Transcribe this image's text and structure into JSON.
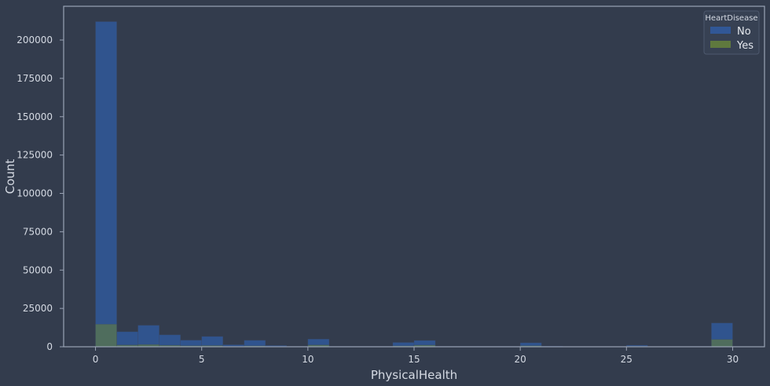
{
  "chart_data": {
    "type": "bar",
    "xlabel": "PhysicalHealth",
    "ylabel": "Count",
    "xlim": [
      -1.5,
      31.5
    ],
    "ylim": [
      0,
      222000
    ],
    "xticks": [
      0,
      5,
      10,
      15,
      20,
      25,
      30
    ],
    "yticks": [
      0,
      25000,
      50000,
      75000,
      100000,
      125000,
      150000,
      175000,
      200000
    ],
    "bin_edges": [
      0,
      1,
      2,
      3,
      4,
      5,
      6,
      7,
      8,
      9,
      10,
      11,
      12,
      13,
      14,
      15,
      16,
      17,
      18,
      19,
      20,
      21,
      22,
      23,
      24,
      25,
      26,
      27,
      28,
      29,
      30
    ],
    "legend": {
      "title": "HeartDisease",
      "placement": "top-right"
    },
    "series": [
      {
        "name": "No",
        "color": "#30589a",
        "values": [
          212000,
          9800,
          14000,
          7800,
          4300,
          6700,
          1300,
          4200,
          800,
          300,
          5000,
          300,
          300,
          300,
          2800,
          4100,
          300,
          300,
          300,
          300,
          2600,
          400,
          200,
          200,
          200,
          1000,
          200,
          200,
          300,
          15500
        ]
      },
      {
        "name": "Yes",
        "color": "#647f3c",
        "values": [
          14700,
          1200,
          1500,
          1000,
          700,
          800,
          300,
          600,
          200,
          100,
          1200,
          100,
          100,
          100,
          600,
          1100,
          100,
          100,
          100,
          100,
          700,
          100,
          100,
          100,
          100,
          300,
          100,
          100,
          100,
          4800
        ]
      }
    ]
  }
}
